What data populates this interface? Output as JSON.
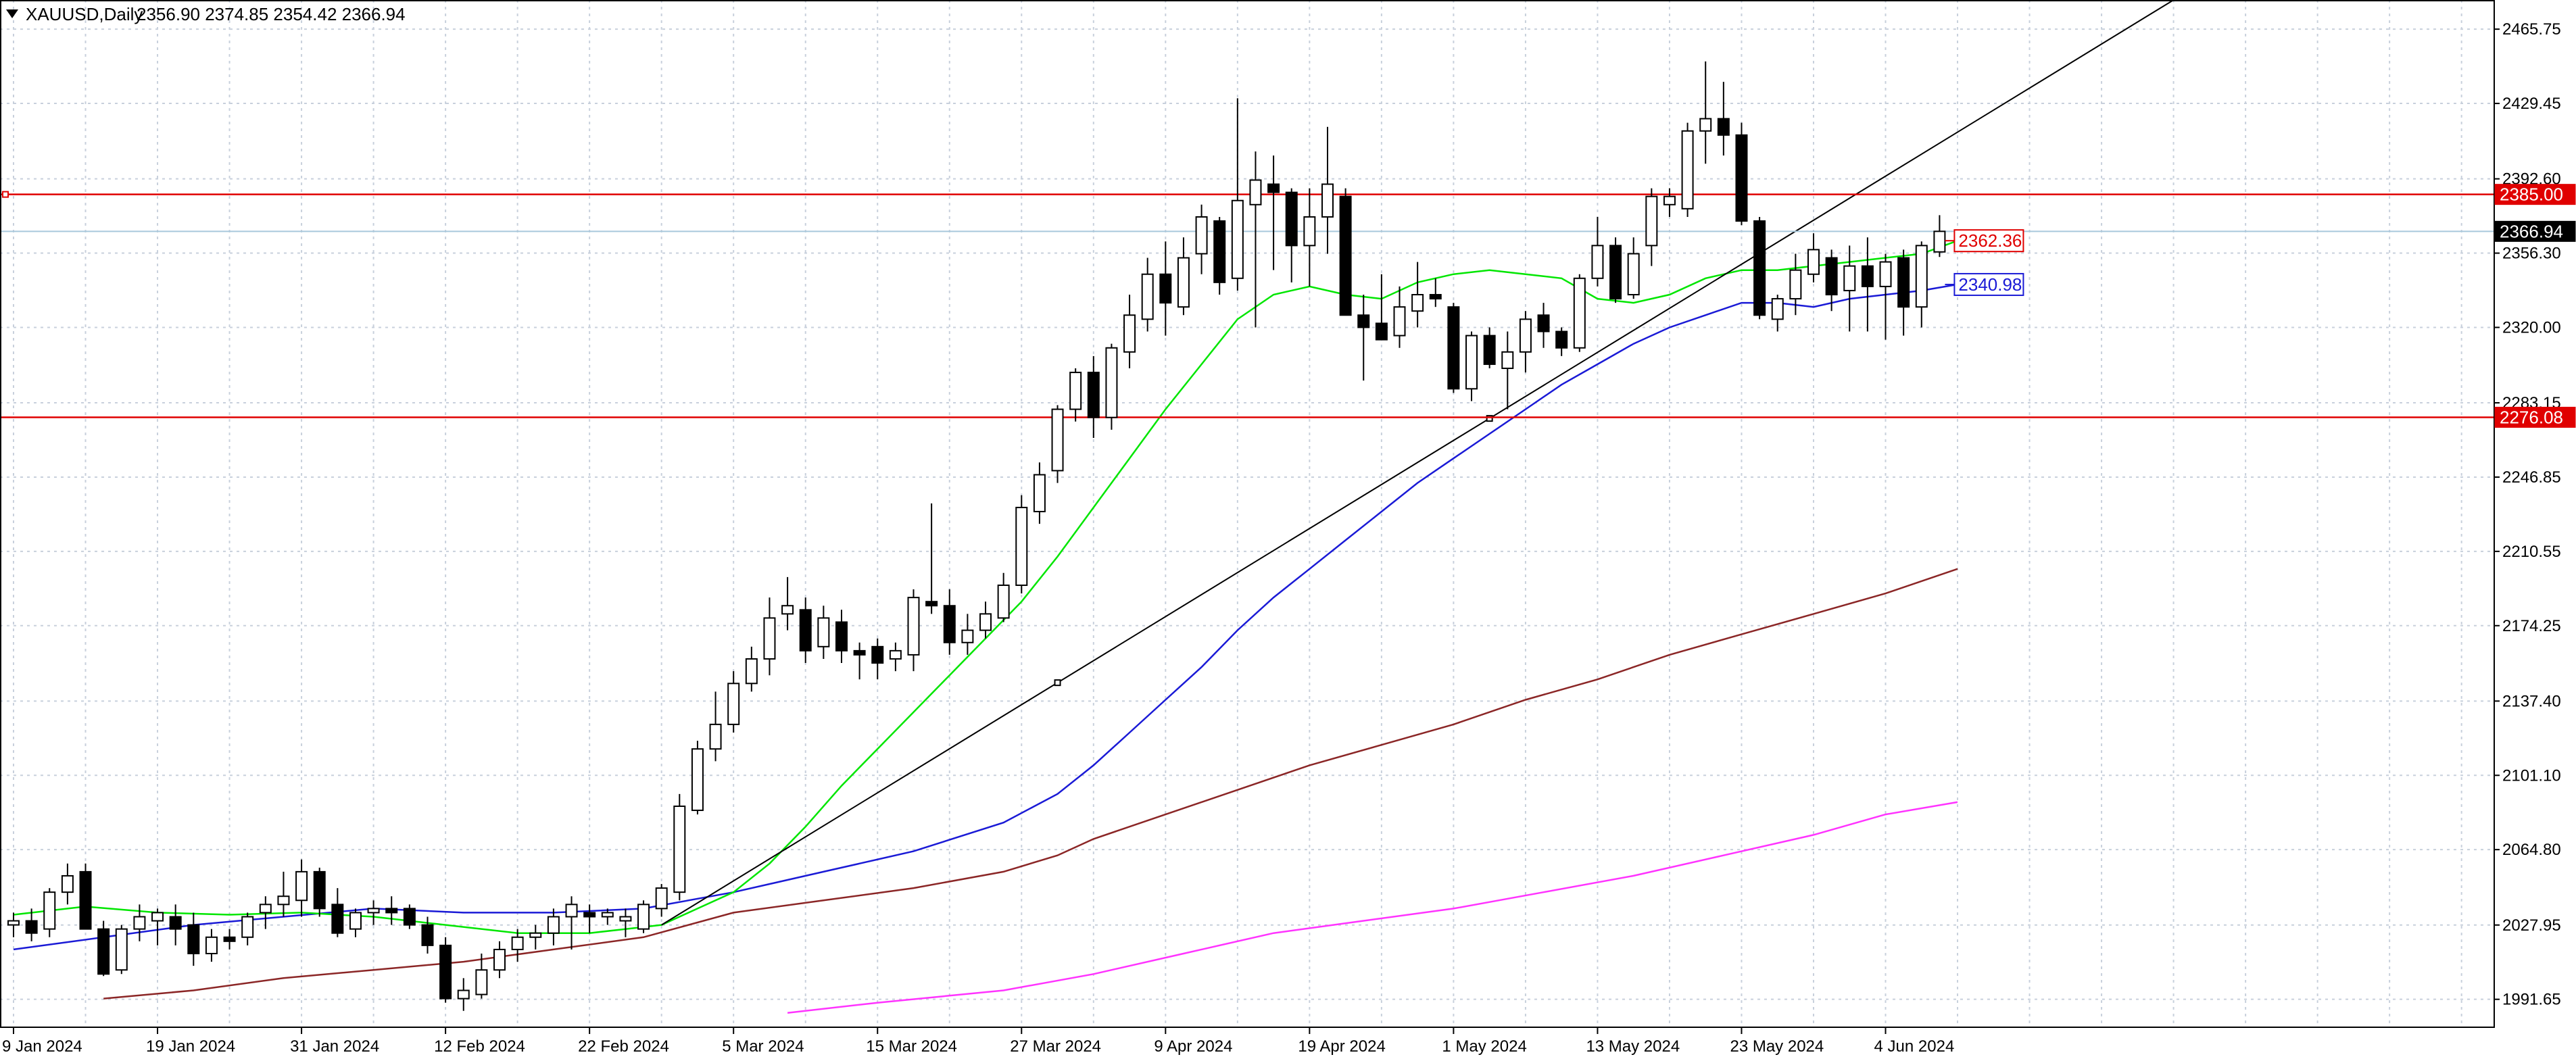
{
  "header": {
    "symbol_label": "XAUUSD,Daily",
    "ohlc_label": "2356.90 2374.85 2354.42 2366.94"
  },
  "chart_data": {
    "type": "candlestick",
    "symbol": "XAUUSD",
    "timeframe": "Daily",
    "ylim": [
      1978,
      2480
    ],
    "y_ticks": [
      "2465.75",
      "2429.45",
      "2392.60",
      "2356.30",
      "2320.00",
      "2283.15",
      "2246.85",
      "2210.55",
      "2174.25",
      "2137.40",
      "2101.10",
      "2064.80",
      "2027.95",
      "1991.65"
    ],
    "x_ticks": [
      {
        "index": 0,
        "label": "9 Jan 2024"
      },
      {
        "index": 8,
        "label": "19 Jan 2024"
      },
      {
        "index": 16,
        "label": "31 Jan 2024"
      },
      {
        "index": 24,
        "label": "12 Feb 2024"
      },
      {
        "index": 32,
        "label": "22 Feb 2024"
      },
      {
        "index": 40,
        "label": "5 Mar 2024"
      },
      {
        "index": 48,
        "label": "15 Mar 2024"
      },
      {
        "index": 56,
        "label": "27 Mar 2024"
      },
      {
        "index": 64,
        "label": "9 Apr 2024"
      },
      {
        "index": 72,
        "label": "19 Apr 2024"
      },
      {
        "index": 80,
        "label": "1 May 2024"
      },
      {
        "index": 88,
        "label": "13 May 2024"
      },
      {
        "index": 96,
        "label": "23 May 2024"
      },
      {
        "index": 104,
        "label": "4 Jun 2024"
      }
    ],
    "grid": true,
    "candles": [
      [
        2028,
        2034,
        2022,
        2030
      ],
      [
        2030,
        2036,
        2020,
        2024
      ],
      [
        2026,
        2046,
        2022,
        2044
      ],
      [
        2044,
        2058,
        2038,
        2052
      ],
      [
        2054,
        2058,
        2028,
        2026
      ],
      [
        2026,
        2030,
        2003,
        2004
      ],
      [
        2006,
        2028,
        2004,
        2026
      ],
      [
        2026,
        2038,
        2020,
        2032
      ],
      [
        2030,
        2036,
        2018,
        2034
      ],
      [
        2032,
        2038,
        2018,
        2026
      ],
      [
        2028,
        2034,
        2008,
        2014
      ],
      [
        2014,
        2026,
        2010,
        2022
      ],
      [
        2022,
        2026,
        2016,
        2020
      ],
      [
        2022,
        2034,
        2018,
        2032
      ],
      [
        2034,
        2042,
        2026,
        2038
      ],
      [
        2038,
        2054,
        2032,
        2042
      ],
      [
        2040,
        2060,
        2032,
        2054
      ],
      [
        2054,
        2056,
        2032,
        2036
      ],
      [
        2038,
        2046,
        2022,
        2024
      ],
      [
        2026,
        2036,
        2022,
        2034
      ],
      [
        2034,
        2040,
        2028,
        2036
      ],
      [
        2036,
        2042,
        2028,
        2034
      ],
      [
        2036,
        2038,
        2026,
        2028
      ],
      [
        2028,
        2032,
        2014,
        2018
      ],
      [
        2018,
        2022,
        1990,
        1992
      ],
      [
        1992,
        2002,
        1986,
        1996
      ],
      [
        1994,
        2014,
        1992,
        2006
      ],
      [
        2006,
        2020,
        2002,
        2016
      ],
      [
        2016,
        2026,
        2010,
        2022
      ],
      [
        2022,
        2028,
        2016,
        2024
      ],
      [
        2024,
        2036,
        2018,
        2032
      ],
      [
        2032,
        2042,
        2016,
        2038
      ],
      [
        2034,
        2038,
        2024,
        2032
      ],
      [
        2032,
        2036,
        2028,
        2034
      ],
      [
        2030,
        2036,
        2022,
        2032
      ],
      [
        2026,
        2040,
        2024,
        2038
      ],
      [
        2036,
        2048,
        2032,
        2046
      ],
      [
        2044,
        2092,
        2040,
        2086
      ],
      [
        2084,
        2118,
        2082,
        2114
      ],
      [
        2114,
        2142,
        2108,
        2126
      ],
      [
        2126,
        2152,
        2122,
        2146
      ],
      [
        2146,
        2164,
        2142,
        2158
      ],
      [
        2158,
        2188,
        2150,
        2178
      ],
      [
        2180,
        2198,
        2172,
        2184
      ],
      [
        2182,
        2188,
        2156,
        2162
      ],
      [
        2164,
        2184,
        2158,
        2178
      ],
      [
        2176,
        2182,
        2156,
        2162
      ],
      [
        2162,
        2166,
        2148,
        2160
      ],
      [
        2164,
        2168,
        2148,
        2156
      ],
      [
        2158,
        2166,
        2152,
        2162
      ],
      [
        2160,
        2192,
        2152,
        2188
      ],
      [
        2186,
        2234,
        2180,
        2184
      ],
      [
        2184,
        2192,
        2160,
        2166
      ],
      [
        2166,
        2180,
        2160,
        2172
      ],
      [
        2172,
        2186,
        2168,
        2180
      ],
      [
        2178,
        2200,
        2176,
        2194
      ],
      [
        2194,
        2238,
        2190,
        2232
      ],
      [
        2230,
        2254,
        2224,
        2248
      ],
      [
        2250,
        2282,
        2244,
        2280
      ],
      [
        2280,
        2300,
        2274,
        2298
      ],
      [
        2298,
        2306,
        2266,
        2276
      ],
      [
        2276,
        2312,
        2270,
        2310
      ],
      [
        2308,
        2336,
        2300,
        2326
      ],
      [
        2324,
        2354,
        2318,
        2346
      ],
      [
        2346,
        2362,
        2316,
        2332
      ],
      [
        2330,
        2364,
        2326,
        2354
      ],
      [
        2356,
        2380,
        2346,
        2374
      ],
      [
        2372,
        2374,
        2336,
        2342
      ],
      [
        2344,
        2432,
        2338,
        2382
      ],
      [
        2380,
        2406,
        2320,
        2392
      ],
      [
        2390,
        2404,
        2348,
        2386
      ],
      [
        2386,
        2388,
        2342,
        2360
      ],
      [
        2360,
        2388,
        2340,
        2374
      ],
      [
        2374,
        2418,
        2356,
        2390
      ],
      [
        2384,
        2388,
        2330,
        2326
      ],
      [
        2326,
        2336,
        2294,
        2320
      ],
      [
        2322,
        2346,
        2318,
        2314
      ],
      [
        2316,
        2340,
        2310,
        2330
      ],
      [
        2328,
        2352,
        2320,
        2336
      ],
      [
        2336,
        2344,
        2330,
        2334
      ],
      [
        2330,
        2332,
        2288,
        2290
      ],
      [
        2290,
        2318,
        2284,
        2316
      ],
      [
        2316,
        2320,
        2300,
        2302
      ],
      [
        2300,
        2318,
        2280,
        2308
      ],
      [
        2308,
        2328,
        2298,
        2324
      ],
      [
        2326,
        2332,
        2310,
        2318
      ],
      [
        2318,
        2320,
        2306,
        2310
      ],
      [
        2310,
        2346,
        2308,
        2344
      ],
      [
        2344,
        2374,
        2340,
        2360
      ],
      [
        2360,
        2364,
        2332,
        2334
      ],
      [
        2336,
        2364,
        2334,
        2356
      ],
      [
        2360,
        2388,
        2350,
        2384
      ],
      [
        2380,
        2388,
        2374,
        2384
      ],
      [
        2378,
        2420,
        2374,
        2416
      ],
      [
        2416,
        2450,
        2400,
        2422
      ],
      [
        2422,
        2440,
        2404,
        2414
      ],
      [
        2414,
        2420,
        2370,
        2372
      ],
      [
        2372,
        2374,
        2324,
        2326
      ],
      [
        2324,
        2336,
        2318,
        2334
      ],
      [
        2334,
        2356,
        2326,
        2348
      ],
      [
        2346,
        2366,
        2342,
        2358
      ],
      [
        2354,
        2358,
        2328,
        2336
      ],
      [
        2338,
        2360,
        2318,
        2350
      ],
      [
        2350,
        2364,
        2318,
        2340
      ],
      [
        2340,
        2356,
        2314,
        2352
      ],
      [
        2354,
        2358,
        2316,
        2330
      ],
      [
        2330,
        2362,
        2320,
        2360
      ],
      [
        2356.9,
        2374.85,
        2354.42,
        2366.94
      ]
    ],
    "ma_green": [
      [
        0,
        2033
      ],
      [
        4,
        2037
      ],
      [
        8,
        2034
      ],
      [
        12,
        2033
      ],
      [
        16,
        2034
      ],
      [
        20,
        2032
      ],
      [
        24,
        2028
      ],
      [
        28,
        2024
      ],
      [
        32,
        2024
      ],
      [
        34,
        2026
      ],
      [
        36,
        2028
      ],
      [
        38,
        2036
      ],
      [
        40,
        2044
      ],
      [
        42,
        2058
      ],
      [
        44,
        2076
      ],
      [
        46,
        2096
      ],
      [
        48,
        2114
      ],
      [
        50,
        2132
      ],
      [
        52,
        2150
      ],
      [
        54,
        2168
      ],
      [
        56,
        2186
      ],
      [
        58,
        2208
      ],
      [
        60,
        2232
      ],
      [
        62,
        2256
      ],
      [
        64,
        2280
      ],
      [
        66,
        2302
      ],
      [
        68,
        2324
      ],
      [
        70,
        2336
      ],
      [
        72,
        2340
      ],
      [
        74,
        2336
      ],
      [
        76,
        2334
      ],
      [
        78,
        2342
      ],
      [
        80,
        2346
      ],
      [
        82,
        2348
      ],
      [
        84,
        2346
      ],
      [
        86,
        2344
      ],
      [
        88,
        2334
      ],
      [
        90,
        2332
      ],
      [
        92,
        2336
      ],
      [
        94,
        2344
      ],
      [
        96,
        2348
      ],
      [
        98,
        2348
      ],
      [
        100,
        2350
      ],
      [
        102,
        2352
      ],
      [
        104,
        2354
      ],
      [
        106,
        2356
      ],
      [
        108,
        2362.36
      ]
    ],
    "ma_blue": [
      [
        0,
        2016
      ],
      [
        5,
        2022
      ],
      [
        10,
        2028
      ],
      [
        15,
        2032
      ],
      [
        20,
        2036
      ],
      [
        25,
        2034
      ],
      [
        30,
        2034
      ],
      [
        35,
        2036
      ],
      [
        40,
        2044
      ],
      [
        45,
        2054
      ],
      [
        50,
        2064
      ],
      [
        55,
        2078
      ],
      [
        58,
        2092
      ],
      [
        60,
        2106
      ],
      [
        62,
        2122
      ],
      [
        64,
        2138
      ],
      [
        66,
        2154
      ],
      [
        68,
        2172
      ],
      [
        70,
        2188
      ],
      [
        72,
        2202
      ],
      [
        74,
        2216
      ],
      [
        76,
        2230
      ],
      [
        78,
        2244
      ],
      [
        80,
        2256
      ],
      [
        82,
        2268
      ],
      [
        84,
        2280
      ],
      [
        86,
        2292
      ],
      [
        88,
        2302
      ],
      [
        90,
        2312
      ],
      [
        92,
        2320
      ],
      [
        94,
        2326
      ],
      [
        96,
        2332
      ],
      [
        98,
        2332
      ],
      [
        100,
        2330
      ],
      [
        102,
        2334
      ],
      [
        104,
        2336
      ],
      [
        106,
        2338
      ],
      [
        108,
        2340.98
      ]
    ],
    "ma_brown": [
      [
        5,
        1992
      ],
      [
        10,
        1996
      ],
      [
        15,
        2002
      ],
      [
        20,
        2006
      ],
      [
        25,
        2010
      ],
      [
        30,
        2016
      ],
      [
        35,
        2022
      ],
      [
        40,
        2034
      ],
      [
        45,
        2040
      ],
      [
        50,
        2046
      ],
      [
        55,
        2054
      ],
      [
        58,
        2062
      ],
      [
        60,
        2070
      ],
      [
        64,
        2082
      ],
      [
        68,
        2094
      ],
      [
        72,
        2106
      ],
      [
        76,
        2116
      ],
      [
        80,
        2126
      ],
      [
        84,
        2138
      ],
      [
        88,
        2148
      ],
      [
        92,
        2160
      ],
      [
        96,
        2170
      ],
      [
        100,
        2180
      ],
      [
        104,
        2190
      ],
      [
        108,
        2202
      ]
    ],
    "ma_magenta": [
      [
        43,
        1985
      ],
      [
        48,
        1990
      ],
      [
        55,
        1996
      ],
      [
        60,
        2004
      ],
      [
        65,
        2014
      ],
      [
        70,
        2024
      ],
      [
        75,
        2030
      ],
      [
        80,
        2036
      ],
      [
        85,
        2044
      ],
      [
        90,
        2052
      ],
      [
        95,
        2062
      ],
      [
        100,
        2072
      ],
      [
        104,
        2082
      ],
      [
        108,
        2088
      ]
    ],
    "trendline": {
      "start": [
        36,
        2028
      ],
      "end": [
        120,
        2480
      ]
    },
    "hlines": [
      {
        "value": 2385.0,
        "label": "2385.00"
      },
      {
        "value": 2276.08,
        "label": "2276.08"
      }
    ],
    "current_price": {
      "value": 2366.94,
      "label": "2366.94"
    },
    "ma_labels": [
      {
        "value": 2362.36,
        "label": "2362.36"
      },
      {
        "value": 2340.98,
        "label": "2340.98"
      }
    ],
    "colors": {
      "up_body": "#ffffff",
      "down_body": "#000000",
      "candle_outline": "#000000",
      "ma_green": "#00e600",
      "ma_blue": "#1a1ad6",
      "ma_brown": "#8b2626",
      "ma_magenta": "#ff33ff",
      "hline": "#e00000",
      "current_line": "#a8c8dc",
      "grid": "#c8d0dc",
      "label_red_border": "#e00000",
      "label_blue_border": "#1a1ad6"
    }
  }
}
